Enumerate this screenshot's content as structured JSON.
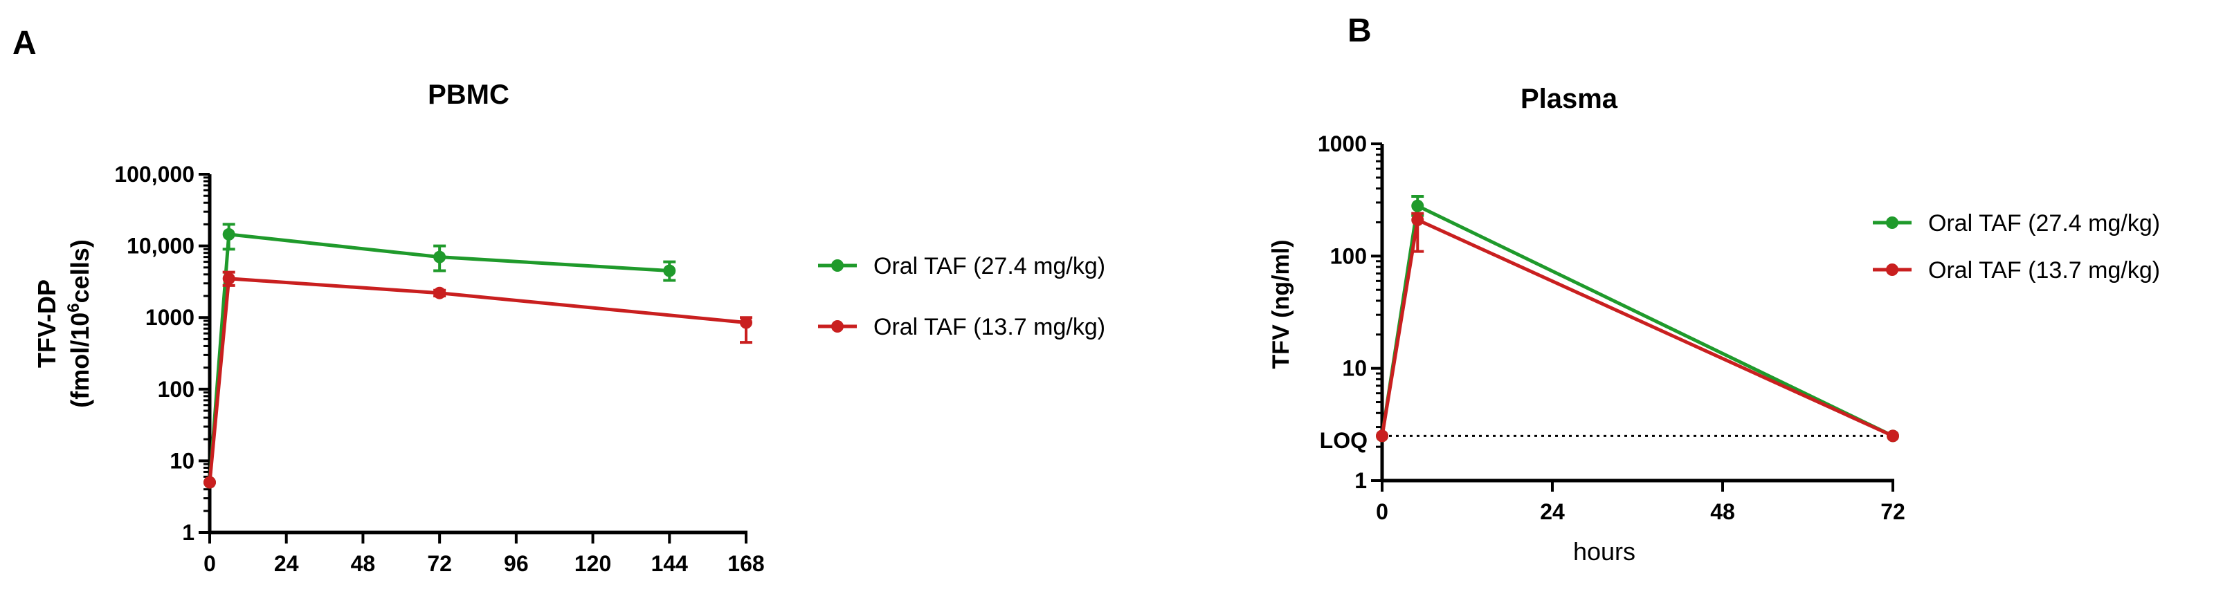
{
  "colors": {
    "green": "#1f9a2b",
    "red": "#c91f1f",
    "axis": "#000000"
  },
  "chart_data": [
    {
      "panel_label": "A",
      "type": "line",
      "title": "PBMC",
      "xlabel": "",
      "ylabel_line1": "TFV-DP",
      "ylabel_line2_pre": "(fmol/10",
      "ylabel_line2_sup": "6",
      "ylabel_line2_post": "cells)",
      "y_scale": "log",
      "xlim": [
        0,
        168
      ],
      "ylim": [
        1,
        100000
      ],
      "x_ticks": [
        0,
        24,
        48,
        72,
        96,
        120,
        144,
        168
      ],
      "x_tick_labels": [
        "0",
        "24",
        "48",
        "72",
        "96",
        "120",
        "144",
        "168"
      ],
      "y_ticks": [
        1,
        10,
        100,
        1000,
        10000,
        100000
      ],
      "y_tick_labels": [
        "1",
        "10",
        "100",
        "1000",
        "10,000",
        "100,000"
      ],
      "legend_placement": "right",
      "series": [
        {
          "name": "Oral TAF (27.4 mg/kg)",
          "color": "#1f9a2b",
          "x": [
            0,
            6,
            72,
            144
          ],
          "y": [
            5,
            14500,
            7000,
            4500
          ],
          "err_low": [
            5,
            9000,
            4500,
            3300
          ],
          "err_high": [
            5,
            20000,
            10000,
            6000
          ]
        },
        {
          "name": "Oral TAF (13.7 mg/kg)",
          "color": "#c91f1f",
          "x": [
            0,
            6,
            72,
            168
          ],
          "y": [
            5,
            3500,
            2200,
            850
          ],
          "err_low": [
            5,
            2800,
            2000,
            450
          ],
          "err_high": [
            5,
            4300,
            2400,
            1000
          ]
        }
      ]
    },
    {
      "panel_label": "B",
      "type": "line",
      "title": "Plasma",
      "xlabel": "hours",
      "ylabel": "TFV (ng/ml)",
      "y_scale": "log",
      "xlim": [
        0,
        72
      ],
      "ylim": [
        1,
        1000
      ],
      "x_ticks": [
        0,
        24,
        48,
        72
      ],
      "x_tick_labels": [
        "0",
        "24",
        "48",
        "72"
      ],
      "y_ticks": [
        1,
        10,
        100,
        1000
      ],
      "y_tick_labels": [
        "1",
        "10",
        "100",
        "1000"
      ],
      "loq_label": "LOQ",
      "loq_value": 2.5,
      "legend_placement": "right",
      "series": [
        {
          "name": "Oral TAF (27.4 mg/kg)",
          "color": "#1f9a2b",
          "x": [
            0,
            5,
            72
          ],
          "y": [
            2.5,
            280,
            2.5
          ],
          "err_low": [
            2.5,
            230,
            2.5
          ],
          "err_high": [
            2.5,
            340,
            2.5
          ]
        },
        {
          "name": "Oral TAF (13.7 mg/kg)",
          "color": "#c91f1f",
          "x": [
            0,
            5,
            72
          ],
          "y": [
            2.5,
            210,
            2.5
          ],
          "err_low": [
            2.5,
            110,
            2.5
          ],
          "err_high": [
            2.5,
            240,
            2.5
          ]
        }
      ]
    }
  ]
}
